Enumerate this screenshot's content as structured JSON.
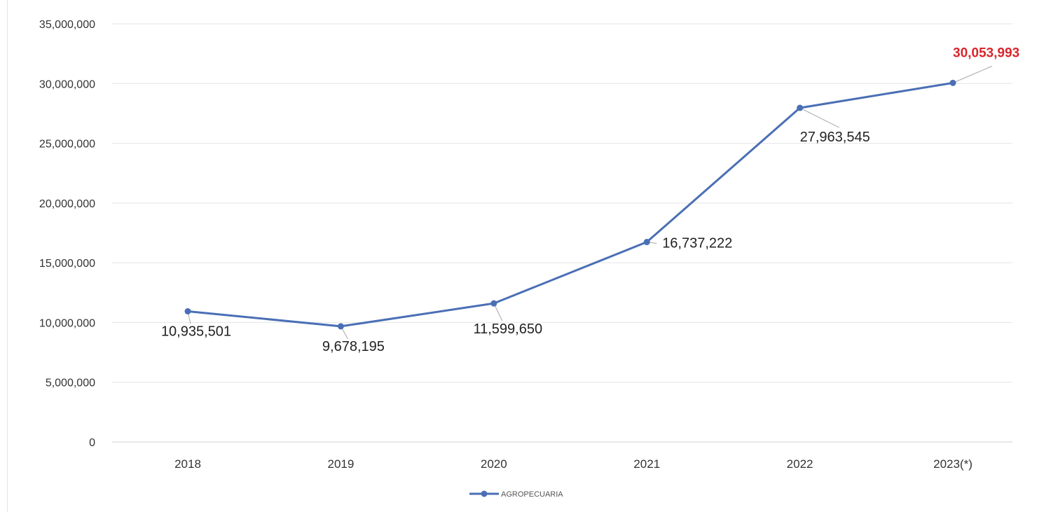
{
  "chart_data": {
    "type": "line",
    "categories": [
      "2018",
      "2019",
      "2020",
      "2021",
      "2022",
      "2023(*)"
    ],
    "series": [
      {
        "name": "AGROPECUARIA",
        "values": [
          10935501,
          9678195,
          11599650,
          16737222,
          27963545,
          30053993
        ],
        "color": "#4a6fb5"
      }
    ],
    "data_labels": [
      "10,935,501",
      "9,678,195",
      "11,599,650",
      "16,737,222",
      "27,963,545",
      "30,053,993"
    ],
    "highlight_label_color": "#d9262c",
    "label_color": "#222222",
    "ylim": [
      0,
      35000000
    ],
    "y_ticks": [
      0,
      5000000,
      10000000,
      15000000,
      20000000,
      25000000,
      30000000,
      35000000
    ],
    "y_tick_labels": [
      "0",
      "5,000,000",
      "10,000,000",
      "15,000,000",
      "20,000,000",
      "25,000,000",
      "30,000,000",
      "35,000,000"
    ],
    "grid": true,
    "legend": {
      "position": "bottom-center"
    },
    "title": "",
    "xlabel": "",
    "ylabel": ""
  }
}
